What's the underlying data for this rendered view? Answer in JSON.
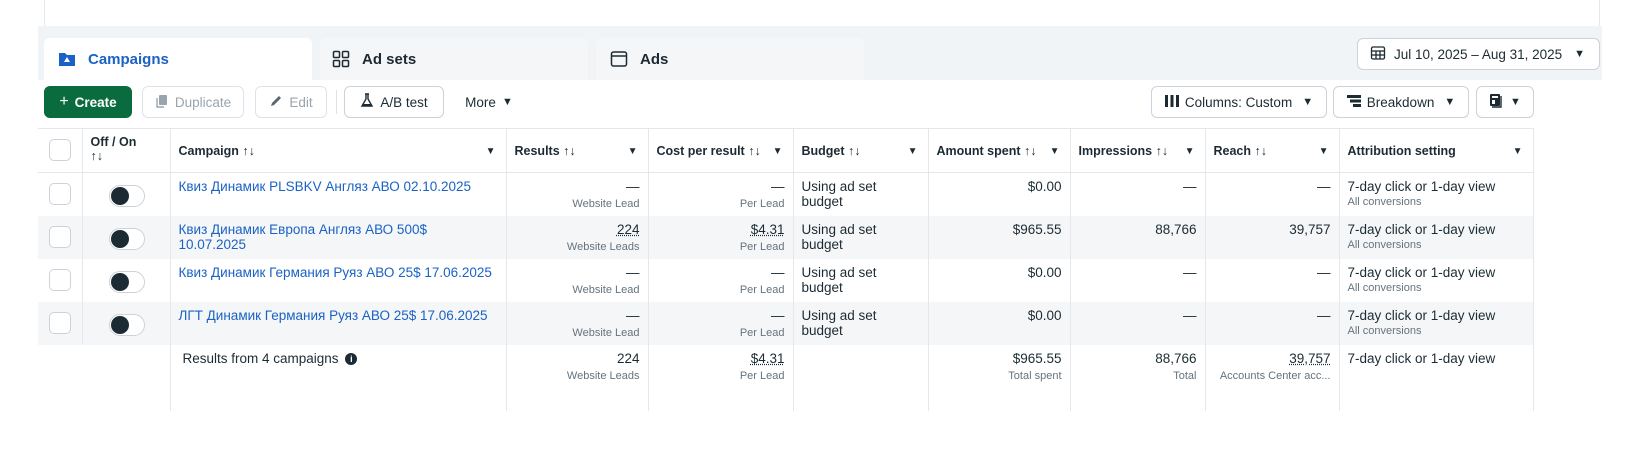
{
  "tabs": {
    "campaigns": "Campaigns",
    "adsets": "Ad sets",
    "ads": "Ads"
  },
  "date_range": "Jul 10, 2025 – Aug 31, 2025",
  "toolbar": {
    "create": "Create",
    "duplicate": "Duplicate",
    "edit": "Edit",
    "ab_test": "A/B test",
    "more": "More",
    "columns": "Columns: Custom",
    "breakdown": "Breakdown"
  },
  "headers": {
    "off_on": "Off / On",
    "campaign": "Campaign",
    "results": "Results",
    "cost_per_result": "Cost per result",
    "budget": "Budget",
    "amount_spent": "Amount spent",
    "impressions": "Impressions",
    "reach": "Reach",
    "attribution": "Attribution setting",
    "sort_glyph": "↑↓"
  },
  "rows": [
    {
      "name": "Квиз Динамик PLSBKV Англяз АВО 02.10.2025",
      "results": "—",
      "results_sub": "Website Lead",
      "cpr": "—",
      "cpr_sub": "Per Lead",
      "budget": "Using ad set budget",
      "spent": "$0.00",
      "impressions": "—",
      "reach": "—",
      "attribution": "7-day click or 1-day view",
      "attribution_sub": "All conversions"
    },
    {
      "name": "Квиз Динамик Европа Англяз АВО 500$ 10.07.2025",
      "results": "224",
      "results_sub": "Website Leads",
      "cpr": "$4.31",
      "cpr_sub": "Per Lead",
      "budget": "Using ad set budget",
      "spent": "$965.55",
      "impressions": "88,766",
      "reach": "39,757",
      "attribution": "7-day click or 1-day view",
      "attribution_sub": "All conversions"
    },
    {
      "name": "Квиз Динамик Германия Руяз АВО 25$ 17.06.2025",
      "results": "—",
      "results_sub": "Website Lead",
      "cpr": "—",
      "cpr_sub": "Per Lead",
      "budget": "Using ad set budget",
      "spent": "$0.00",
      "impressions": "—",
      "reach": "—",
      "attribution": "7-day click or 1-day view",
      "attribution_sub": "All conversions"
    },
    {
      "name": "ЛГТ Динамик Германия Руяз АВО 25$ 17.06.2025",
      "results": "—",
      "results_sub": "Website Lead",
      "cpr": "—",
      "cpr_sub": "Per Lead",
      "budget": "Using ad set budget",
      "spent": "$0.00",
      "impressions": "—",
      "reach": "—",
      "attribution": "7-day click or 1-day view",
      "attribution_sub": "All conversions"
    }
  ],
  "summary": {
    "label": "Results from 4 campaigns",
    "results": "224",
    "results_sub": "Website Leads",
    "cpr": "$4.31",
    "cpr_sub": "Per Lead",
    "spent": "$965.55",
    "spent_sub": "Total spent",
    "impressions": "88,766",
    "impressions_sub": "Total",
    "reach": "39,757",
    "reach_sub": "Accounts Center acc...",
    "attribution": "7-day click or 1-day view"
  },
  "colors": {
    "accent": "#1a62c5",
    "primary_button": "#0a6b3e",
    "text": "#1c2b33"
  }
}
